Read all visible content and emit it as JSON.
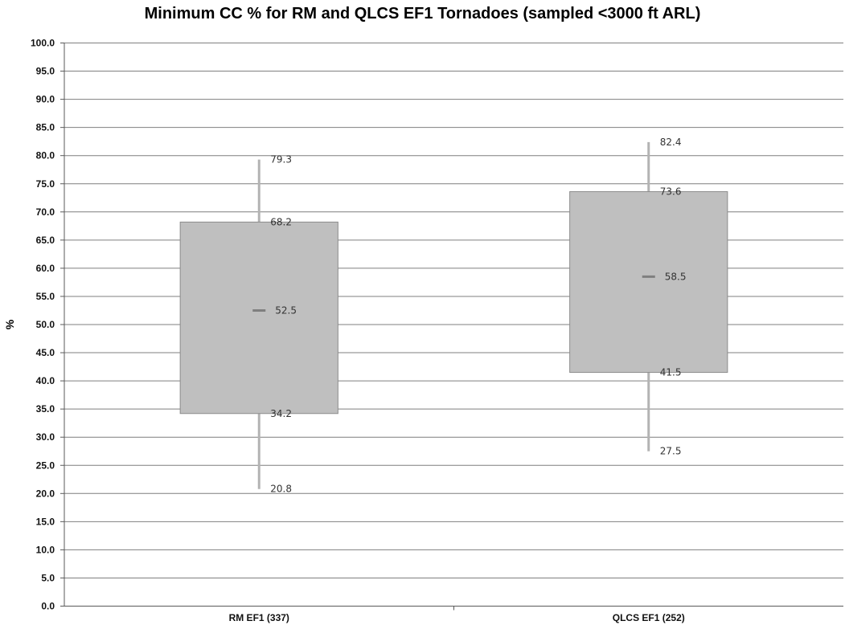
{
  "chart_data": {
    "type": "box",
    "title": "Minimum CC % for RM and QLCS EF1 Tornadoes (sampled <3000 ft ARL)",
    "xlabel": "",
    "ylabel": "%",
    "ylim": [
      0,
      100
    ],
    "yticks": [
      "0.0",
      "5.0",
      "10.0",
      "15.0",
      "20.0",
      "25.0",
      "30.0",
      "35.0",
      "40.0",
      "45.0",
      "50.0",
      "55.0",
      "60.0",
      "65.0",
      "70.0",
      "75.0",
      "80.0",
      "85.0",
      "90.0",
      "95.0",
      "100.0"
    ],
    "grid": true,
    "categories": [
      "RM EF1 (337)",
      "QLCS EF1 (252)"
    ],
    "boxes": [
      {
        "category": "RM EF1 (337)",
        "max": 79.3,
        "q3": 68.2,
        "median": 52.5,
        "q1": 34.2,
        "min": 20.8,
        "labels": {
          "max": "79.3",
          "q3": "68.2",
          "median": "52.5",
          "q1": "34.2",
          "min": "20.8"
        }
      },
      {
        "category": "QLCS EF1 (252)",
        "max": 82.4,
        "q3": 73.6,
        "median": 58.5,
        "q1": 41.5,
        "min": 27.5,
        "labels": {
          "max": "82.4",
          "q3": "73.6",
          "median": "58.5",
          "q1": "41.5",
          "min": "27.5"
        }
      }
    ],
    "colors": {
      "box_fill": "#bfbfbf",
      "box_stroke": "#8c8c8c",
      "whisker": "#b3b3b3",
      "median": "#7f7f7f",
      "grid": "#7f7f7f",
      "axis": "#595959"
    }
  }
}
